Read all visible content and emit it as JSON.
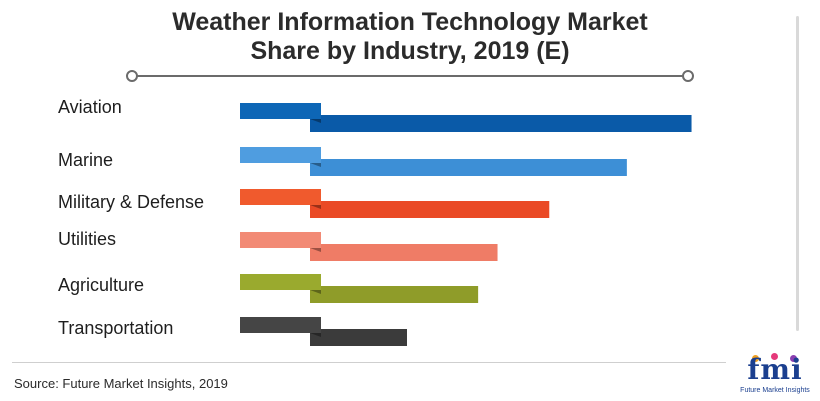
{
  "title_lines": [
    "Weather Information Technology Market",
    "Share by Industry, 2019 (E)"
  ],
  "source": "Source: Future Market Insights, 2019",
  "logo": {
    "mark": "fmi",
    "subtitle": "Future Market Insights"
  },
  "chart_data": {
    "type": "bar",
    "orientation": "horizontal",
    "title": "Weather Information Technology Market Share by Industry, 2019 (E)",
    "categories": [
      "Aviation",
      "Marine",
      "Military & Defense",
      "Utilities",
      "Agriculture",
      "Transportation"
    ],
    "values": [
      29.5,
      24.5,
      18.5,
      14.5,
      13.0,
      7.5
    ],
    "colors": [
      "#0a5aa8",
      "#3d8fd6",
      "#ea4a26",
      "#ef7c66",
      "#8f9c29",
      "#3b3b3b"
    ],
    "tab_colors": [
      "#0d66b6",
      "#4f9de0",
      "#f05a2d",
      "#f28a75",
      "#9aaa2e",
      "#454545"
    ],
    "xlabel": "",
    "ylabel": "",
    "xlim": [
      0,
      30
    ],
    "grid": false,
    "legend": "none"
  }
}
